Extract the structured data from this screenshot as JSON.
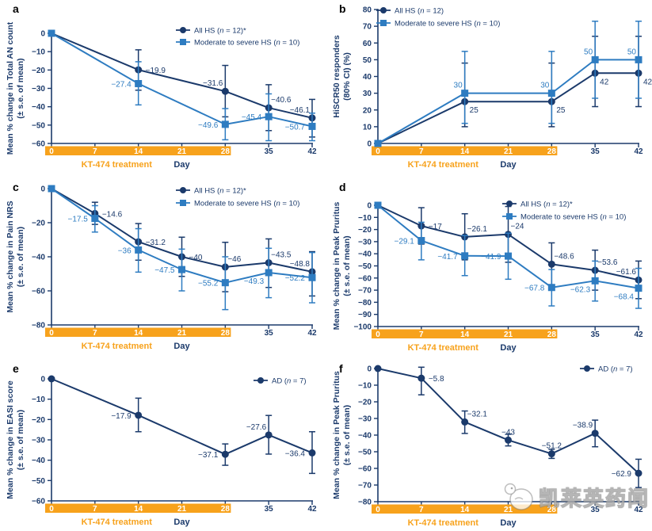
{
  "colors": {
    "navy": "#1b3a6b",
    "blue": "#2e7cc1",
    "orange": "#f7a21c"
  },
  "xlabel": "Day",
  "treatment_label": "KT-474 treatment",
  "xticks": [
    0,
    7,
    14,
    21,
    28,
    35,
    42
  ],
  "watermark": {
    "text": "凯莱英药闻",
    "logo": "chick-bubble-logo"
  },
  "chart_data": [
    {
      "type": "line",
      "panel": "a",
      "ylabel_lines": [
        "Mean % change in Total AN count",
        "(± s.e. of mean)"
      ],
      "ymax": 0,
      "ymin": -60,
      "yticks": [
        {
          "v": 0,
          "label": "0"
        },
        {
          "v": -10,
          "label": "−10"
        },
        {
          "v": -20,
          "label": "−20"
        },
        {
          "v": -30,
          "label": "−30"
        },
        {
          "v": -40,
          "label": "−40"
        },
        {
          "v": -50,
          "label": "−50"
        },
        {
          "v": -60,
          "label": "−60"
        }
      ],
      "legend": {
        "pos": "tr",
        "items": [
          {
            "series": 0,
            "label": "All HS (n = 12)*"
          },
          {
            "series": 1,
            "label": "Moderate to severe HS (n = 10)"
          }
        ]
      },
      "series": [
        {
          "name": "All HS (n = 12)*",
          "marker": "circle",
          "color": "navy",
          "points": [
            {
              "x": 0,
              "y": 0
            },
            {
              "x": 14,
              "y": -19.9,
              "lo": -31,
              "hi": -9,
              "label": "−19.9",
              "lp": "r"
            },
            {
              "x": 28,
              "y": -31.6,
              "lo": -45.5,
              "hi": -17.5,
              "label": "−31.6",
              "lp": "tl"
            },
            {
              "x": 35,
              "y": -40.6,
              "lo": -53,
              "hi": -28,
              "label": "−40.6",
              "lp": "tr"
            },
            {
              "x": 42,
              "y": -46.1,
              "lo": -56.5,
              "hi": -36,
              "label": "−46.1",
              "lp": "tl"
            }
          ]
        },
        {
          "name": "Moderate to severe HS (n = 10)",
          "marker": "square",
          "color": "blue",
          "points": [
            {
              "x": 0,
              "y": 0
            },
            {
              "x": 14,
              "y": -27.4,
              "lo": -39,
              "hi": -15.5,
              "label": "−27.4",
              "lp": "l"
            },
            {
              "x": 28,
              "y": -49.6,
              "lo": -58,
              "hi": -41,
              "label": "−49.6",
              "lp": "l"
            },
            {
              "x": 35,
              "y": -45.4,
              "lo": -58.5,
              "hi": -33,
              "label": "−45.4",
              "lp": "l"
            },
            {
              "x": 42,
              "y": -50.7,
              "lo": -58.5,
              "hi": -43.5,
              "label": "−50.7",
              "lp": "l"
            }
          ]
        }
      ]
    },
    {
      "type": "line",
      "panel": "b",
      "ylabel_lines": [
        "HiSCR50 responders",
        "(80% CI) (%)"
      ],
      "ymax": 80,
      "ymin": 0,
      "yticks": [
        {
          "v": 80,
          "label": "80"
        },
        {
          "v": 70,
          "label": "70"
        },
        {
          "v": 60,
          "label": "60"
        },
        {
          "v": 50,
          "label": "50"
        },
        {
          "v": 40,
          "label": "40"
        },
        {
          "v": 30,
          "label": "30"
        },
        {
          "v": 20,
          "label": "20"
        },
        {
          "v": 10,
          "label": "10"
        },
        {
          "v": 0,
          "label": "0"
        }
      ],
      "legend": {
        "pos": "tl",
        "items": [
          {
            "series": 0,
            "label": "All HS (n = 12)"
          },
          {
            "series": 1,
            "label": "Moderate to severe HS (n = 10)"
          }
        ]
      },
      "series": [
        {
          "name": "All HS (n = 12)",
          "marker": "circle",
          "color": "navy",
          "points": [
            {
              "x": 0,
              "y": 0
            },
            {
              "x": 14,
              "y": 25,
              "lo": 10,
              "hi": 48,
              "label": "25",
              "lp": "br"
            },
            {
              "x": 28,
              "y": 25,
              "lo": 10,
              "hi": 48,
              "label": "25",
              "lp": "br"
            },
            {
              "x": 35,
              "y": 42,
              "lo": 22,
              "hi": 64,
              "label": "42",
              "lp": "br"
            },
            {
              "x": 42,
              "y": 42,
              "lo": 22,
              "hi": 64,
              "label": "42",
              "lp": "br"
            }
          ]
        },
        {
          "name": "Moderate to severe HS (n = 10)",
          "marker": "square",
          "color": "blue",
          "points": [
            {
              "x": 0,
              "y": 0
            },
            {
              "x": 14,
              "y": 30,
              "lo": 12,
              "hi": 55,
              "label": "30",
              "lp": "tl"
            },
            {
              "x": 28,
              "y": 30,
              "lo": 12,
              "hi": 55,
              "label": "30",
              "lp": "tl"
            },
            {
              "x": 35,
              "y": 50,
              "lo": 27,
              "hi": 73,
              "label": "50",
              "lp": "tl"
            },
            {
              "x": 42,
              "y": 50,
              "lo": 27,
              "hi": 73,
              "label": "50",
              "lp": "tl"
            }
          ]
        }
      ]
    },
    {
      "type": "line",
      "panel": "c",
      "ylabel_lines": [
        "Mean % change in Pain NRS",
        "(± s.e. of mean)"
      ],
      "ymax": 0,
      "ymin": -80,
      "yticks": [
        {
          "v": 0,
          "label": "0"
        },
        {
          "v": -20,
          "label": "−20"
        },
        {
          "v": -40,
          "label": "−40"
        },
        {
          "v": -60,
          "label": "−60"
        },
        {
          "v": -80,
          "label": "−80"
        }
      ],
      "legend": {
        "pos": "tr",
        "items": [
          {
            "series": 0,
            "label": "All HS (n = 12)*"
          },
          {
            "series": 1,
            "label": "Moderate to severe HS (n = 10)"
          }
        ]
      },
      "series": [
        {
          "name": "All HS (n = 12)*",
          "marker": "circle",
          "color": "navy",
          "points": [
            {
              "x": 0,
              "y": 0
            },
            {
              "x": 7,
              "y": -14.6,
              "lo": -21,
              "hi": -8,
              "label": "−14.6",
              "lp": "r"
            },
            {
              "x": 14,
              "y": -31.2,
              "lo": -42,
              "hi": -20.5,
              "label": "−31.2",
              "lp": "r"
            },
            {
              "x": 21,
              "y": -40,
              "lo": -51.5,
              "hi": -28.5,
              "label": "−40",
              "lp": "r"
            },
            {
              "x": 28,
              "y": -46,
              "lo": -60.5,
              "hi": -31.5,
              "label": "−46",
              "lp": "tr"
            },
            {
              "x": 35,
              "y": -43.5,
              "lo": -58,
              "hi": -29.5,
              "label": "−43.5",
              "lp": "tr"
            },
            {
              "x": 42,
              "y": -48.8,
              "lo": -63,
              "hi": -37,
              "label": "−48.8",
              "lp": "tl"
            }
          ]
        },
        {
          "name": "Moderate to severe HS (n = 10)",
          "marker": "square",
          "color": "blue",
          "points": [
            {
              "x": 0,
              "y": 0
            },
            {
              "x": 7,
              "y": -17.5,
              "lo": -25.5,
              "hi": -10,
              "label": "−17.5",
              "lp": "l"
            },
            {
              "x": 14,
              "y": -36,
              "lo": -49,
              "hi": -23.5,
              "label": "−36",
              "lp": "l"
            },
            {
              "x": 21,
              "y": -47.5,
              "lo": -60,
              "hi": -35.5,
              "label": "−47.5",
              "lp": "l"
            },
            {
              "x": 28,
              "y": -55.2,
              "lo": -71,
              "hi": -40,
              "label": "−55.2",
              "lp": "l"
            },
            {
              "x": 35,
              "y": -49.3,
              "lo": -64,
              "hi": -35,
              "label": "−49.3",
              "lp": "bl"
            },
            {
              "x": 42,
              "y": -52.2,
              "lo": -67,
              "hi": -37.5,
              "label": "−52.2",
              "lp": "l"
            }
          ]
        }
      ]
    },
    {
      "type": "line",
      "panel": "d",
      "ylabel_lines": [
        "Mean % change in Peak Pruritus",
        "(± s.e. of mean)"
      ],
      "ymax": 0,
      "ymin": -100,
      "yticks": [
        {
          "v": 0,
          "label": "0"
        },
        {
          "v": -10,
          "label": "−10"
        },
        {
          "v": -20,
          "label": "−20"
        },
        {
          "v": -30,
          "label": "−30"
        },
        {
          "v": -40,
          "label": "−40"
        },
        {
          "v": -50,
          "label": "−50"
        },
        {
          "v": -60,
          "label": "−60"
        },
        {
          "v": -70,
          "label": "−70"
        },
        {
          "v": -80,
          "label": "−80"
        },
        {
          "v": -90,
          "label": "−90"
        },
        {
          "v": -100,
          "label": "−100"
        }
      ],
      "legend": {
        "pos": "tr",
        "items": [
          {
            "series": 0,
            "label": "All HS (n = 12)*"
          },
          {
            "series": 1,
            "label": "Moderate to severe HS (n = 10)"
          }
        ]
      },
      "series": [
        {
          "name": "All HS (n = 12)*",
          "marker": "circle",
          "color": "navy",
          "points": [
            {
              "x": 0,
              "y": 0
            },
            {
              "x": 7,
              "y": -17,
              "lo": -32,
              "hi": -2,
              "label": "−17",
              "lp": "r"
            },
            {
              "x": 14,
              "y": -26.1,
              "lo": -45,
              "hi": -7,
              "label": "−26.1",
              "lp": "tr"
            },
            {
              "x": 21,
              "y": -24,
              "lo": -47,
              "hi": -1,
              "label": "−24",
              "lp": "tr"
            },
            {
              "x": 28,
              "y": -48.6,
              "lo": -67,
              "hi": -31,
              "label": "−48.6",
              "lp": "tr"
            },
            {
              "x": 35,
              "y": -53.6,
              "lo": -70,
              "hi": -37,
              "label": "−53.6",
              "lp": "tr"
            },
            {
              "x": 42,
              "y": -61.6,
              "lo": -77,
              "hi": -46,
              "label": "−61.6",
              "lp": "tl"
            }
          ]
        },
        {
          "name": "Moderate to severe HS (n = 10)",
          "marker": "square",
          "color": "blue",
          "points": [
            {
              "x": 0,
              "y": 0
            },
            {
              "x": 7,
              "y": -29.1,
              "lo": -45,
              "hi": -14,
              "label": "−29.1",
              "lp": "l"
            },
            {
              "x": 14,
              "y": -41.7,
              "lo": -58,
              "hi": -25,
              "label": "−41.7",
              "lp": "l"
            },
            {
              "x": 21,
              "y": -41.9,
              "lo": -61,
              "hi": -23,
              "label": "−41.9",
              "lp": "l"
            },
            {
              "x": 28,
              "y": -67.8,
              "lo": -83,
              "hi": -53,
              "label": "−67.8",
              "lp": "l"
            },
            {
              "x": 35,
              "y": -62.3,
              "lo": -79,
              "hi": -46,
              "label": "−62.3",
              "lp": "bl"
            },
            {
              "x": 42,
              "y": -68.4,
              "lo": -85,
              "hi": -52,
              "label": "−68.4",
              "lp": "bl"
            }
          ]
        }
      ]
    },
    {
      "type": "line",
      "panel": "e",
      "ylabel_lines": [
        "Mean % change in EASI score",
        "(± s.e. of mean)"
      ],
      "ymax": 0,
      "ymin": -60,
      "yticks": [
        {
          "v": 0,
          "label": "0"
        },
        {
          "v": -10,
          "label": "−10"
        },
        {
          "v": -20,
          "label": "−20"
        },
        {
          "v": -30,
          "label": "−30"
        },
        {
          "v": -40,
          "label": "−40"
        },
        {
          "v": -50,
          "label": "−50"
        },
        {
          "v": -60,
          "label": "−60"
        }
      ],
      "legend": {
        "pos": "tr",
        "items": [
          {
            "series": 0,
            "label": "AD (n = 7)"
          }
        ]
      },
      "series": [
        {
          "name": "AD (n = 7)",
          "marker": "circle",
          "color": "navy",
          "points": [
            {
              "x": 0,
              "y": 0
            },
            {
              "x": 14,
              "y": -17.9,
              "lo": -26,
              "hi": -9.5,
              "label": "−17.9",
              "lp": "l"
            },
            {
              "x": 28,
              "y": -37.1,
              "lo": -42.5,
              "hi": -32,
              "label": "−37.1",
              "lp": "l"
            },
            {
              "x": 35,
              "y": -27.6,
              "lo": -37,
              "hi": -18,
              "label": "−27.6",
              "lp": "tl"
            },
            {
              "x": 42,
              "y": -36.4,
              "lo": -46.5,
              "hi": -26,
              "label": "−36.4",
              "lp": "l"
            }
          ]
        }
      ]
    },
    {
      "type": "line",
      "panel": "f",
      "ylabel_lines": [
        "Mean % change in Peak Pruritus",
        "(± s.e. of mean)"
      ],
      "ymax": 0,
      "ymin": -80,
      "yticks": [
        {
          "v": 0,
          "label": "0"
        },
        {
          "v": -10,
          "label": "−10"
        },
        {
          "v": -20,
          "label": "−20"
        },
        {
          "v": -30,
          "label": "−30"
        },
        {
          "v": -40,
          "label": "−40"
        },
        {
          "v": -50,
          "label": "−50"
        },
        {
          "v": -60,
          "label": "−60"
        },
        {
          "v": -70,
          "label": "−70"
        },
        {
          "v": -80,
          "label": "−80"
        }
      ],
      "legend": {
        "pos": "tr",
        "items": [
          {
            "series": 0,
            "label": "AD (n = 7)"
          }
        ]
      },
      "series": [
        {
          "name": "AD (n = 7)",
          "marker": "circle",
          "color": "navy",
          "points": [
            {
              "x": 0,
              "y": 0
            },
            {
              "x": 7,
              "y": -5.8,
              "lo": -15.8,
              "hi": 0.8,
              "label": "−5.8",
              "lp": "r"
            },
            {
              "x": 14,
              "y": -32.1,
              "lo": -39,
              "hi": -25.5,
              "label": "−32.1",
              "lp": "tr"
            },
            {
              "x": 21,
              "y": -43,
              "lo": -46.5,
              "hi": -39.5,
              "label": "−43",
              "lp": "t"
            },
            {
              "x": 28,
              "y": -51.2,
              "lo": -54,
              "hi": -48.5,
              "label": "−51.2",
              "lp": "t"
            },
            {
              "x": 35,
              "y": -38.9,
              "lo": -47,
              "hi": -31,
              "label": "−38.9",
              "lp": "tl"
            },
            {
              "x": 42,
              "y": -62.9,
              "lo": -71.5,
              "hi": -54.5,
              "label": "−62.9",
              "lp": "l"
            }
          ]
        }
      ]
    }
  ]
}
